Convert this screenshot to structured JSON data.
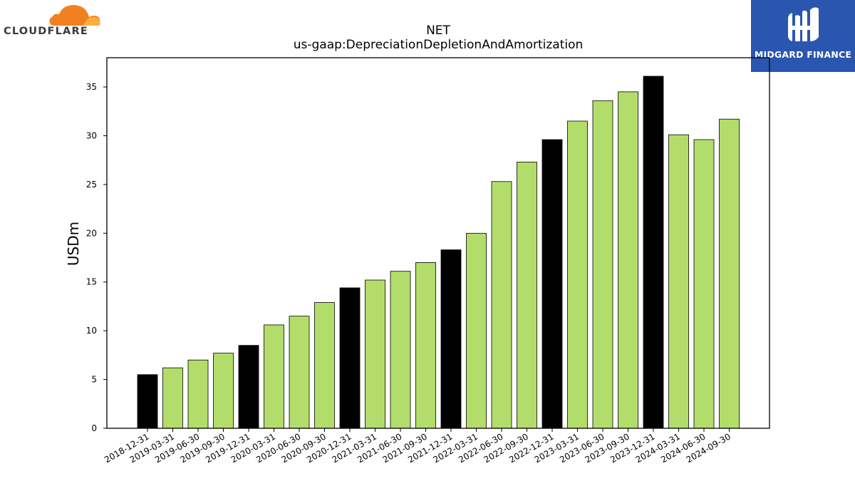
{
  "logos": {
    "left_text": "CLOUDFLARE",
    "right_text": "MIDGARD FINANCE",
    "left_icon": "cloud-icon",
    "right_icon": "midgard-monogram-icon"
  },
  "colors": {
    "bar_regular": "#b3dd6a",
    "bar_year_end": "#000000",
    "brand_orange": "#f38020",
    "brand_blue": "#2a56b0"
  },
  "chart_data": {
    "type": "bar",
    "title": "NET",
    "subtitle": "us-gaap:DepreciationDepletionAndAmortization",
    "xlabel": "",
    "ylabel": "USDm",
    "ylim": [
      0,
      38
    ],
    "yticks": [
      0,
      5,
      10,
      15,
      20,
      25,
      30,
      35
    ],
    "grid": false,
    "categories": [
      "2018-12-31",
      "2019-03-31",
      "2019-06-30",
      "2019-09-30",
      "2019-12-31",
      "2020-03-31",
      "2020-06-30",
      "2020-09-30",
      "2020-12-31",
      "2021-03-31",
      "2021-06-30",
      "2021-09-30",
      "2021-12-31",
      "2022-03-31",
      "2022-06-30",
      "2022-09-30",
      "2022-12-31",
      "2023-03-31",
      "2023-06-30",
      "2023-09-30",
      "2023-12-31",
      "2024-03-31",
      "2024-06-30",
      "2024-09-30"
    ],
    "values": [
      5.5,
      6.2,
      7.0,
      7.7,
      8.5,
      10.6,
      11.5,
      12.9,
      14.4,
      15.2,
      16.1,
      17.0,
      18.3,
      20.0,
      25.3,
      27.3,
      29.6,
      31.5,
      33.6,
      34.5,
      36.1,
      30.1,
      29.6,
      31.7
    ],
    "highlight_year_end": [
      true,
      false,
      false,
      false,
      true,
      false,
      false,
      false,
      true,
      false,
      false,
      false,
      true,
      false,
      false,
      false,
      true,
      false,
      false,
      false,
      true,
      false,
      false,
      false
    ]
  }
}
